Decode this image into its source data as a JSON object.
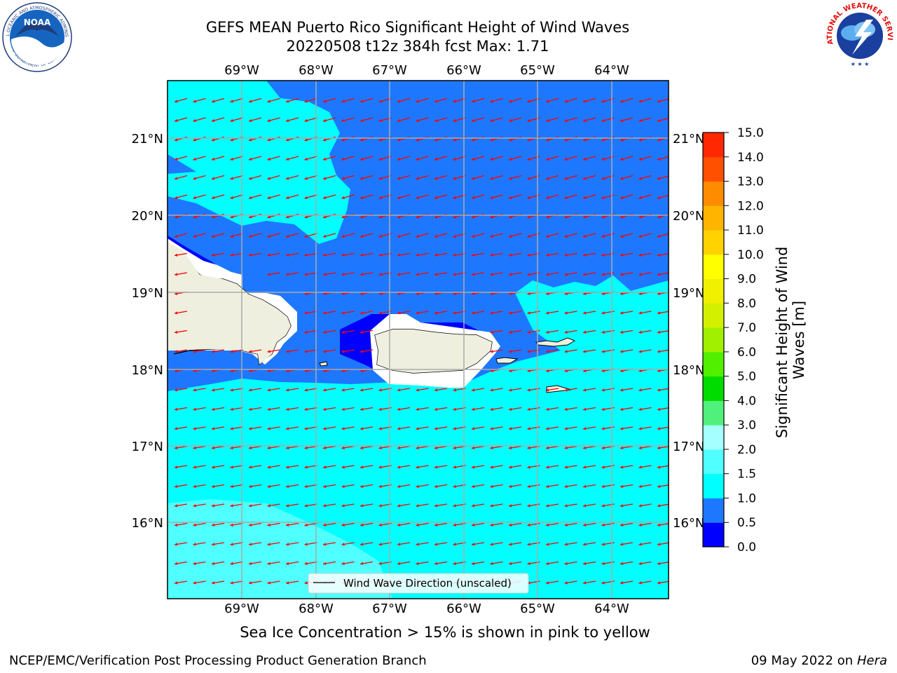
{
  "header": {
    "title_line1": "GEFS MEAN Puerto Rico Significant Height of Wind Waves",
    "title_line2": "20220508 t12z 384h fcst   Max: 1.71"
  },
  "logos": {
    "noaa_text": "NOAA",
    "noaa_ring_top": "NATIONAL OCEANIC AND ATMOSPHERIC ADMINISTRATION",
    "noaa_ring_bottom": "U.S. DEPARTMENT OF COMMERCE",
    "nws_ring_top": "NATIONAL WEATHER SERVICE"
  },
  "map": {
    "lon_labels": [
      "69°W",
      "68°W",
      "67°W",
      "66°W",
      "65°W",
      "64°W"
    ],
    "lat_labels": [
      "21°N",
      "20°N",
      "19°N",
      "18°N",
      "17°N",
      "16°N"
    ],
    "legend_label": "Wind Wave Direction (unscaled)",
    "colors": {
      "ocean_low": "#0000ff",
      "ocean_mid": "#1e78ff",
      "ocean_high": "#00ffff",
      "ocean_higher": "#50ffff",
      "land": "#efefdf",
      "arrow": "#ff0000",
      "grid": "#aaaaaa"
    }
  },
  "colorbar": {
    "label": "Significant Height of Wind Waves [m]",
    "ticks": [
      "0.0",
      "0.5",
      "1.0",
      "1.5",
      "2.0",
      "3.0",
      "4.0",
      "5.0",
      "6.0",
      "7.0",
      "8.0",
      "9.0",
      "10.0",
      "11.0",
      "12.0",
      "13.0",
      "14.0",
      "15.0"
    ],
    "colors": [
      "#0000ff",
      "#1e78ff",
      "#00ffff",
      "#50ffff",
      "#a6ffff",
      "#50f07c",
      "#00dc00",
      "#50f000",
      "#a0f000",
      "#d2f000",
      "#f0f000",
      "#ffff00",
      "#ffd200",
      "#ffb400",
      "#ff8c00",
      "#ff5000",
      "#ff2800",
      "#ff0000"
    ]
  },
  "subcaption": "Sea Ice Concentration > 15% is shown in pink to yellow",
  "footer": {
    "left": "NCEP/EMC/Verification Post Processing Product Generation Branch",
    "date": "09 May 2022 on",
    "machine": "Hera"
  }
}
